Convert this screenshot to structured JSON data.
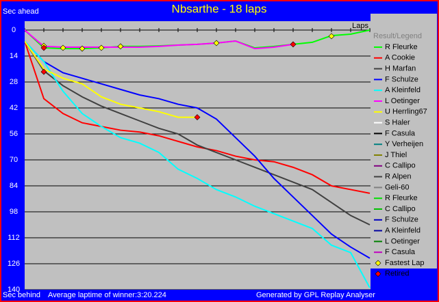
{
  "chart_data": {
    "type": "line",
    "title": "Nbsarthe - 18 laps",
    "y_label_top": "Sec ahead",
    "y_label_bottom": "Sec behind",
    "x_label": "Laps",
    "footer_left": "Average laptime of winner:3:20.224",
    "footer_right": "Generated by GPL Replay Analyser",
    "legend_title": "Result/Legend",
    "x": [
      0,
      1,
      2,
      3,
      4,
      5,
      6,
      7,
      8,
      9,
      10,
      11,
      12,
      13,
      14,
      15,
      16,
      17,
      18
    ],
    "xlim": [
      0,
      18
    ],
    "xticks": [
      0,
      1,
      2,
      3,
      4,
      5,
      6,
      7,
      8,
      9,
      10,
      11,
      12,
      13,
      14,
      15,
      16,
      17,
      18
    ],
    "ylim": [
      0,
      140
    ],
    "y_inverted": true,
    "yticks": [
      0,
      14,
      28,
      42,
      56,
      70,
      84,
      98,
      112,
      126,
      140
    ],
    "grid": true,
    "series": [
      {
        "name": "R Fleurke",
        "color": "#00ff00",
        "values": [
          0,
          9.6,
          10,
          10,
          9.6,
          8.8,
          8.8,
          8.5,
          8.1,
          7.7,
          7,
          5.9,
          9.6,
          8.8,
          7.7,
          6.6,
          3,
          2.2,
          0
        ]
      },
      {
        "name": "A Cookie",
        "color": "#ff0000",
        "values": [
          6,
          37,
          45,
          50,
          52,
          54,
          55,
          57,
          60,
          63,
          65,
          68,
          70,
          71,
          74,
          78,
          84,
          86,
          88
        ]
      },
      {
        "name": "H Marfan",
        "color": "#404040",
        "values": [
          6,
          22,
          30,
          36,
          41,
          45,
          49,
          53,
          56,
          62,
          66,
          70,
          74,
          78,
          82,
          86,
          93,
          100,
          105
        ]
      },
      {
        "name": "F Schulze",
        "color": "#0000ff",
        "values": [
          6,
          17,
          23,
          26,
          29,
          32,
          35,
          37,
          40,
          42,
          48,
          58,
          68,
          80,
          90,
          100,
          110,
          117,
          123
        ]
      },
      {
        "name": "A Kleinfeld",
        "color": "#00ffff",
        "values": [
          6,
          17,
          33,
          45,
          52,
          58,
          61,
          66,
          75,
          80,
          86,
          90,
          95,
          99,
          103,
          107,
          116,
          120,
          139
        ]
      },
      {
        "name": "L Oetinger",
        "color": "#ff00ff",
        "values": [
          0,
          8.8,
          9.2,
          9.2,
          9.2,
          9.2,
          9.2,
          8.8,
          8.1,
          7.7,
          7,
          5.9,
          10,
          9.2,
          7.7,
          null,
          null,
          null,
          null
        ]
      },
      {
        "name": "U Herrling67",
        "color": "#ffff00",
        "values": [
          6,
          21,
          26,
          29,
          36,
          40,
          42,
          44,
          47,
          47,
          null,
          null,
          null,
          null,
          null,
          null,
          null,
          null,
          null
        ]
      },
      {
        "name": "S Haler",
        "color": "#ffffff",
        "values": [
          null,
          null,
          null,
          null,
          null,
          null,
          null,
          null,
          null,
          null,
          null,
          null,
          null,
          null,
          null,
          null,
          null,
          null,
          null
        ]
      },
      {
        "name": "F Casula",
        "color": "#000000",
        "values": [
          null,
          null,
          null,
          null,
          null,
          null,
          null,
          null,
          null,
          null,
          null,
          null,
          null,
          null,
          null,
          null,
          null,
          null,
          null
        ]
      },
      {
        "name": "Y Verheijen",
        "color": "#008080",
        "values": [
          null,
          null,
          null,
          null,
          null,
          null,
          null,
          null,
          null,
          null,
          null,
          null,
          null,
          null,
          null,
          null,
          null,
          null,
          null
        ]
      },
      {
        "name": "J Thiel",
        "color": "#808000",
        "values": [
          null,
          null,
          null,
          null,
          null,
          null,
          null,
          null,
          null,
          null,
          null,
          null,
          null,
          null,
          null,
          null,
          null,
          null,
          null
        ]
      },
      {
        "name": "C Callipo",
        "color": "#800080",
        "values": [
          null,
          null,
          null,
          null,
          null,
          null,
          null,
          null,
          null,
          null,
          null,
          null,
          null,
          null,
          null,
          null,
          null,
          null,
          null
        ]
      },
      {
        "name": "R Alpen",
        "color": "#404040",
        "values": [
          null,
          null,
          null,
          null,
          null,
          null,
          null,
          null,
          null,
          null,
          null,
          null,
          null,
          null,
          null,
          null,
          null,
          null,
          null
        ]
      },
      {
        "name": "Geli-60",
        "color": "#808080",
        "values": [
          null,
          null,
          null,
          null,
          null,
          null,
          null,
          null,
          null,
          null,
          null,
          null,
          null,
          null,
          null,
          null,
          null,
          null,
          null
        ]
      },
      {
        "name": "R Fleurke",
        "color": "#00e000",
        "values": [
          null,
          null,
          null,
          null,
          null,
          null,
          null,
          null,
          null,
          null,
          null,
          null,
          null,
          null,
          null,
          null,
          null,
          null,
          null
        ]
      },
      {
        "name": "C Callipo",
        "color": "#00c000",
        "values": [
          null,
          null,
          null,
          null,
          null,
          null,
          null,
          null,
          null,
          null,
          null,
          null,
          null,
          null,
          null,
          null,
          null,
          null,
          null
        ]
      },
      {
        "name": "F Schulze",
        "color": "#0000c0",
        "values": [
          null,
          null,
          null,
          null,
          null,
          null,
          null,
          null,
          null,
          null,
          null,
          null,
          null,
          null,
          null,
          null,
          null,
          null,
          null
        ]
      },
      {
        "name": "A Kleinfeld",
        "color": "#0000a0",
        "values": [
          null,
          null,
          null,
          null,
          null,
          null,
          null,
          null,
          null,
          null,
          null,
          null,
          null,
          null,
          null,
          null,
          null,
          null,
          null
        ]
      },
      {
        "name": "L Oetinger",
        "color": "#008000",
        "values": [
          null,
          null,
          null,
          null,
          null,
          null,
          null,
          null,
          null,
          null,
          null,
          null,
          null,
          null,
          null,
          null,
          null,
          null,
          null
        ]
      },
      {
        "name": "F Casula",
        "color": "#c000c0",
        "values": [
          null,
          null,
          null,
          null,
          null,
          null,
          null,
          null,
          null,
          null,
          null,
          null,
          null,
          null,
          null,
          null,
          null,
          null,
          null
        ]
      }
    ],
    "markers": [
      {
        "name": "Fastest Lap",
        "color": "#ffff00",
        "x": [
          1,
          2,
          3,
          4,
          5,
          10,
          16
        ],
        "values": [
          8.5,
          9.6,
          10,
          9.6,
          8.8,
          7,
          3.3
        ]
      },
      {
        "name": "Retired",
        "color": "#ff0000",
        "x": [
          1,
          1,
          9,
          14
        ],
        "values": [
          9.6,
          22.5,
          47,
          7.7
        ]
      }
    ]
  }
}
